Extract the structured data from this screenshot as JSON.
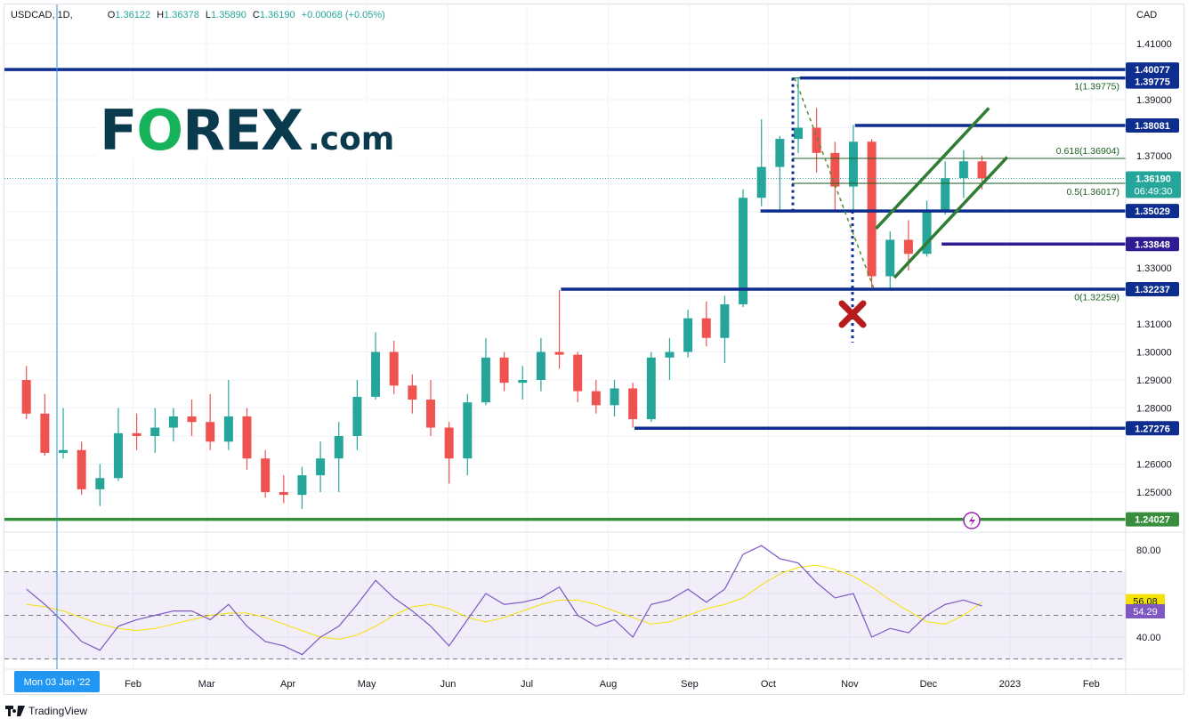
{
  "header": {
    "symbol": "USDCAD, 1D,",
    "o_label": "O",
    "o": "1.36122",
    "h_label": "H",
    "h": "1.36378",
    "l_label": "L",
    "l": "1.35890",
    "c_label": "C",
    "c": "1.36190",
    "change": "+0.00068 (+0.05%)"
  },
  "logo": {
    "text_f": "F",
    "text_o": "O",
    "text_rex": "REX",
    "text_com": ".com"
  },
  "footer": {
    "brand": "TradingView"
  },
  "colors": {
    "up": "#26a69a",
    "down": "#ef5350",
    "level": "#0d2e8f",
    "support_green": "#388e3c",
    "purple_level": "#311b92",
    "fib": "#1b5e20",
    "channel": "#2e7d32",
    "rsi": "#7e57c2",
    "rsi_ma": "#f5e100",
    "crosshair": "#2196f3"
  },
  "chart_data": {
    "type": "candlestick",
    "title": "USDCAD, 1D",
    "currency_label": "CAD",
    "ylim": [
      1.23,
      1.415
    ],
    "y_ticks": [
      "1.41000",
      "1.39000",
      "1.37000",
      "1.33000",
      "1.31000",
      "1.30000",
      "1.29000",
      "1.28000",
      "1.26000",
      "1.25000"
    ],
    "x_ticks": [
      "Feb",
      "Mar",
      "Apr",
      "May",
      "Jun",
      "Jul",
      "Aug",
      "Sep",
      "Oct",
      "Nov",
      "Dec",
      "2023",
      "Feb"
    ],
    "crosshair_label": "Mon 03 Jan '22",
    "candle_period": "week",
    "candles": [
      {
        "date": "2021-12-20",
        "o": 1.29,
        "h": 1.295,
        "l": 1.276,
        "c": 1.278
      },
      {
        "date": "2021-12-27",
        "o": 1.278,
        "h": 1.285,
        "l": 1.263,
        "c": 1.264
      },
      {
        "date": "2022-01-03",
        "o": 1.264,
        "h": 1.28,
        "l": 1.262,
        "c": 1.265
      },
      {
        "date": "2022-01-10",
        "o": 1.265,
        "h": 1.268,
        "l": 1.249,
        "c": 1.251
      },
      {
        "date": "2022-01-17",
        "o": 1.251,
        "h": 1.26,
        "l": 1.245,
        "c": 1.255
      },
      {
        "date": "2022-01-24",
        "o": 1.255,
        "h": 1.28,
        "l": 1.254,
        "c": 1.271
      },
      {
        "date": "2022-01-31",
        "o": 1.271,
        "h": 1.278,
        "l": 1.265,
        "c": 1.27
      },
      {
        "date": "2022-02-07",
        "o": 1.27,
        "h": 1.28,
        "l": 1.264,
        "c": 1.273
      },
      {
        "date": "2022-02-14",
        "o": 1.273,
        "h": 1.28,
        "l": 1.268,
        "c": 1.277
      },
      {
        "date": "2022-02-21",
        "o": 1.277,
        "h": 1.283,
        "l": 1.27,
        "c": 1.275
      },
      {
        "date": "2022-02-28",
        "o": 1.275,
        "h": 1.285,
        "l": 1.265,
        "c": 1.268
      },
      {
        "date": "2022-03-07",
        "o": 1.268,
        "h": 1.29,
        "l": 1.265,
        "c": 1.277
      },
      {
        "date": "2022-03-14",
        "o": 1.277,
        "h": 1.28,
        "l": 1.258,
        "c": 1.262
      },
      {
        "date": "2022-03-21",
        "o": 1.262,
        "h": 1.265,
        "l": 1.248,
        "c": 1.25
      },
      {
        "date": "2022-03-28",
        "o": 1.25,
        "h": 1.256,
        "l": 1.246,
        "c": 1.249
      },
      {
        "date": "2022-04-04",
        "o": 1.249,
        "h": 1.259,
        "l": 1.244,
        "c": 1.256
      },
      {
        "date": "2022-04-11",
        "o": 1.256,
        "h": 1.268,
        "l": 1.25,
        "c": 1.262
      },
      {
        "date": "2022-04-18",
        "o": 1.262,
        "h": 1.275,
        "l": 1.25,
        "c": 1.27
      },
      {
        "date": "2022-04-25",
        "o": 1.27,
        "h": 1.29,
        "l": 1.265,
        "c": 1.284
      },
      {
        "date": "2022-05-02",
        "o": 1.284,
        "h": 1.307,
        "l": 1.283,
        "c": 1.3
      },
      {
        "date": "2022-05-09",
        "o": 1.3,
        "h": 1.304,
        "l": 1.285,
        "c": 1.288
      },
      {
        "date": "2022-05-16",
        "o": 1.288,
        "h": 1.292,
        "l": 1.278,
        "c": 1.283
      },
      {
        "date": "2022-05-23",
        "o": 1.283,
        "h": 1.29,
        "l": 1.27,
        "c": 1.273
      },
      {
        "date": "2022-05-30",
        "o": 1.273,
        "h": 1.275,
        "l": 1.253,
        "c": 1.262
      },
      {
        "date": "2022-06-06",
        "o": 1.262,
        "h": 1.285,
        "l": 1.256,
        "c": 1.282
      },
      {
        "date": "2022-06-13",
        "o": 1.282,
        "h": 1.305,
        "l": 1.281,
        "c": 1.298
      },
      {
        "date": "2022-06-20",
        "o": 1.298,
        "h": 1.3,
        "l": 1.286,
        "c": 1.289
      },
      {
        "date": "2022-06-27",
        "o": 1.289,
        "h": 1.295,
        "l": 1.283,
        "c": 1.29
      },
      {
        "date": "2022-07-04",
        "o": 1.29,
        "h": 1.305,
        "l": 1.286,
        "c": 1.3
      },
      {
        "date": "2022-07-11",
        "o": 1.3,
        "h": 1.322,
        "l": 1.294,
        "c": 1.299
      },
      {
        "date": "2022-07-18",
        "o": 1.299,
        "h": 1.3,
        "l": 1.282,
        "c": 1.286
      },
      {
        "date": "2022-07-25",
        "o": 1.286,
        "h": 1.29,
        "l": 1.278,
        "c": 1.281
      },
      {
        "date": "2022-08-01",
        "o": 1.281,
        "h": 1.29,
        "l": 1.277,
        "c": 1.287
      },
      {
        "date": "2022-08-08",
        "o": 1.287,
        "h": 1.289,
        "l": 1.273,
        "c": 1.276
      },
      {
        "date": "2022-08-15",
        "o": 1.276,
        "h": 1.3,
        "l": 1.275,
        "c": 1.298
      },
      {
        "date": "2022-08-22",
        "o": 1.298,
        "h": 1.305,
        "l": 1.29,
        "c": 1.3
      },
      {
        "date": "2022-08-29",
        "o": 1.3,
        "h": 1.315,
        "l": 1.298,
        "c": 1.312
      },
      {
        "date": "2022-09-05",
        "o": 1.312,
        "h": 1.318,
        "l": 1.302,
        "c": 1.305
      },
      {
        "date": "2022-09-12",
        "o": 1.305,
        "h": 1.32,
        "l": 1.296,
        "c": 1.317
      },
      {
        "date": "2022-09-19",
        "o": 1.317,
        "h": 1.358,
        "l": 1.316,
        "c": 1.355
      },
      {
        "date": "2022-09-26",
        "o": 1.355,
        "h": 1.383,
        "l": 1.352,
        "c": 1.366
      },
      {
        "date": "2022-10-03",
        "o": 1.366,
        "h": 1.377,
        "l": 1.35,
        "c": 1.376
      },
      {
        "date": "2022-10-10",
        "o": 1.376,
        "h": 1.398,
        "l": 1.371,
        "c": 1.38
      },
      {
        "date": "2022-10-17",
        "o": 1.38,
        "h": 1.387,
        "l": 1.364,
        "c": 1.371
      },
      {
        "date": "2022-10-24",
        "o": 1.371,
        "h": 1.375,
        "l": 1.35,
        "c": 1.359
      },
      {
        "date": "2022-10-31",
        "o": 1.359,
        "h": 1.381,
        "l": 1.35,
        "c": 1.375
      },
      {
        "date": "2022-11-07",
        "o": 1.375,
        "h": 1.376,
        "l": 1.323,
        "c": 1.327
      },
      {
        "date": "2022-11-14",
        "o": 1.327,
        "h": 1.343,
        "l": 1.322,
        "c": 1.34
      },
      {
        "date": "2022-11-21",
        "o": 1.34,
        "h": 1.347,
        "l": 1.329,
        "c": 1.335
      },
      {
        "date": "2022-11-28",
        "o": 1.335,
        "h": 1.354,
        "l": 1.334,
        "c": 1.35
      },
      {
        "date": "2022-12-05",
        "o": 1.35,
        "h": 1.368,
        "l": 1.349,
        "c": 1.362
      },
      {
        "date": "2022-12-12",
        "o": 1.362,
        "h": 1.372,
        "l": 1.355,
        "c": 1.368
      },
      {
        "date": "2022-12-19",
        "o": 1.368,
        "h": 1.37,
        "l": 1.358,
        "c": 1.3619
      }
    ],
    "last_price": {
      "value": "1.36190",
      "countdown": "06:49:30"
    },
    "levels": [
      {
        "value": 1.40077,
        "label": "1.40077",
        "color": "#0d2e8f",
        "from": "2021-12-13"
      },
      {
        "value": 1.39775,
        "label": "1.39775",
        "color": "#0d2e8f",
        "from": "2022-10-13"
      },
      {
        "value": 1.38081,
        "label": "1.38081",
        "color": "#0d2e8f",
        "from": "2022-11-03"
      },
      {
        "value": 1.35029,
        "label": "1.35029",
        "color": "#0d2e8f",
        "from": "2022-09-28"
      },
      {
        "value": 1.33848,
        "label": "1.33848",
        "color": "#311b92",
        "from": "2022-12-06"
      },
      {
        "value": 1.32237,
        "label": "1.32237",
        "color": "#0d2e8f",
        "from": "2022-07-14"
      },
      {
        "value": 1.27276,
        "label": "1.27276",
        "color": "#0d2e8f",
        "from": "2022-08-11"
      },
      {
        "value": 1.24027,
        "label": "1.24027",
        "color": "#388e3c",
        "from": "2021-12-13"
      }
    ],
    "fibonacci": [
      {
        "ratio": "1",
        "value": 1.39775,
        "label": "1(1.39775)"
      },
      {
        "ratio": "0.618",
        "value": 1.36904,
        "label": "0.618(1.36904)"
      },
      {
        "ratio": "0.5",
        "value": 1.36017,
        "label": "0.5(1.36017)"
      },
      {
        "ratio": "0",
        "value": 1.32259,
        "label": "0(1.32259)"
      }
    ],
    "channel": [
      {
        "from": {
          "date": "2022-11-11",
          "value": 1.344
        },
        "to": {
          "date": "2022-12-24",
          "value": 1.387
        }
      },
      {
        "from": {
          "date": "2022-11-18",
          "value": 1.3265
        },
        "to": {
          "date": "2022-12-31",
          "value": 1.3695
        }
      }
    ],
    "rsi": {
      "ylim": [
        25,
        90
      ],
      "y_ticks": [
        "80.00",
        "40.00"
      ],
      "bands": [
        70,
        50,
        30
      ],
      "value_label": "54.29",
      "ma_label": "56.08",
      "values": [
        62,
        55,
        47,
        38,
        34,
        45,
        48,
        50,
        52,
        52,
        48,
        55,
        45,
        38,
        36,
        32,
        40,
        45,
        55,
        66,
        58,
        52,
        45,
        36,
        48,
        60,
        55,
        56,
        58,
        63,
        50,
        45,
        48,
        40,
        55,
        57,
        62,
        56,
        62,
        78,
        82,
        76,
        74,
        65,
        58,
        60,
        40,
        44,
        42,
        50,
        55,
        57,
        54.29
      ],
      "ma": [
        55,
        54,
        52,
        49,
        46,
        44,
        43,
        44,
        46,
        48,
        50,
        51,
        51,
        49,
        46,
        43,
        40,
        39,
        41,
        45,
        50,
        54,
        55,
        53,
        49,
        47,
        49,
        52,
        55,
        57,
        57,
        55,
        52,
        49,
        46,
        47,
        50,
        53,
        55,
        58,
        64,
        69,
        72,
        73,
        71,
        68,
        63,
        57,
        52,
        47,
        46,
        50,
        56.08
      ]
    }
  }
}
